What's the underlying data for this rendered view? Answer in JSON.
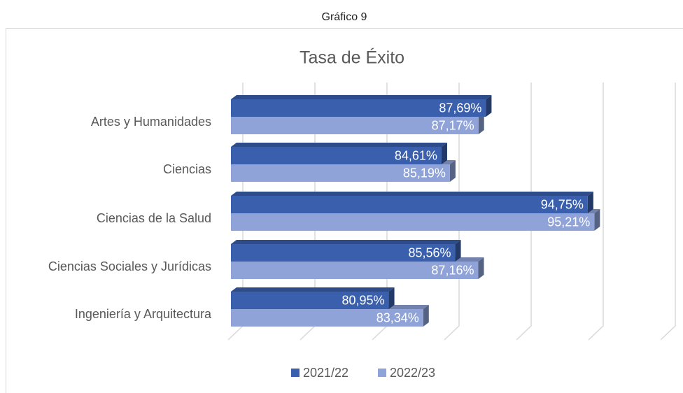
{
  "caption": "Gráfico 9",
  "chart_data": {
    "type": "bar3d-horizontal",
    "title": "Tasa de Éxito",
    "categories": [
      "Artes y Humanidades",
      "Ciencias",
      "Ciencias de la Salud",
      "Ciencias Sociales y Jurídicas",
      "Ingeniería y Arquitectura"
    ],
    "series": [
      {
        "name": "2021/22",
        "color": "#3a5fad",
        "values": [
          87.69,
          84.61,
          94.75,
          85.56,
          80.95
        ],
        "value_labels": [
          "87,69%",
          "84,61%",
          "94,75%",
          "85,56%",
          "80,95%"
        ]
      },
      {
        "name": "2022/23",
        "color": "#8fa3d8",
        "values": [
          87.17,
          85.19,
          95.21,
          87.16,
          83.34
        ],
        "value_labels": [
          "87,17%",
          "85,19%",
          "95,21%",
          "87,16%",
          "83,34%"
        ]
      }
    ],
    "xlim": [
      70,
      100
    ],
    "xticks": [
      70,
      75,
      80,
      85,
      90,
      95,
      100
    ],
    "grid": true,
    "legend": "bottom"
  }
}
